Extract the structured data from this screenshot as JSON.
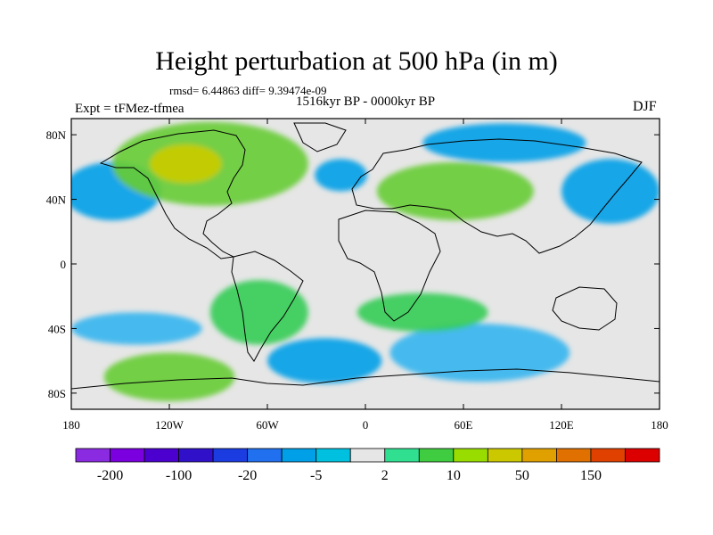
{
  "title": "Height perturbation at 500 hPa (in m)",
  "stats_line": "rmsd= 6.44863 diff= 9.39474e-09",
  "period": "1516kyr BP - 0000kyr BP",
  "experiment": "Expt = tFMez-tfmea",
  "season": "DJF",
  "map": {
    "projection": "cylindrical equidistant",
    "lon_range": [
      -180,
      180
    ],
    "lat_range": [
      -90,
      90
    ],
    "x_ticks": [
      {
        "lon": -180,
        "label": "180"
      },
      {
        "lon": -120,
        "label": "120W"
      },
      {
        "lon": -60,
        "label": "60W"
      },
      {
        "lon": 0,
        "label": "0"
      },
      {
        "lon": 60,
        "label": "60E"
      },
      {
        "lon": 120,
        "label": "120E"
      },
      {
        "lon": 180,
        "label": "180"
      }
    ],
    "y_ticks": [
      {
        "lat": 80,
        "label": "80N"
      },
      {
        "lat": 40,
        "label": "40N"
      },
      {
        "lat": 0,
        "label": "0"
      },
      {
        "lat": -40,
        "label": "40S"
      },
      {
        "lat": -80,
        "label": "80S"
      }
    ],
    "background_color": "#e6e6e6",
    "regions": [
      {
        "name": "north-pacific-low",
        "lon": -155,
        "lat": 45,
        "rlon": 30,
        "rlat": 18,
        "color": "#00a0e8"
      },
      {
        "name": "north-america-high",
        "lon": -95,
        "lat": 62,
        "rlon": 60,
        "rlat": 26,
        "color": "#66cc33"
      },
      {
        "name": "canada-peak",
        "lon": -110,
        "lat": 62,
        "rlon": 22,
        "rlat": 12,
        "color": "#cccc00"
      },
      {
        "name": "north-atlantic-low",
        "lon": -15,
        "lat": 55,
        "rlon": 16,
        "rlat": 10,
        "color": "#00a0e8"
      },
      {
        "name": "eurasia-high",
        "lon": 55,
        "lat": 45,
        "rlon": 48,
        "rlat": 18,
        "color": "#66cc33"
      },
      {
        "name": "siberia-low",
        "lon": 85,
        "lat": 75,
        "rlon": 50,
        "rlat": 12,
        "color": "#00a0e8"
      },
      {
        "name": "west-pacific-low",
        "lon": 150,
        "lat": 45,
        "rlon": 30,
        "rlat": 20,
        "color": "#00a0e8"
      },
      {
        "name": "south-america-high",
        "lon": -65,
        "lat": -30,
        "rlon": 30,
        "rlat": 20,
        "color": "#33cc55"
      },
      {
        "name": "south-pacific-low",
        "lon": -140,
        "lat": -40,
        "rlon": 40,
        "rlat": 10,
        "color": "#33b5f0"
      },
      {
        "name": "south-atlantic-low",
        "lon": -25,
        "lat": -60,
        "rlon": 35,
        "rlat": 14,
        "color": "#00a0e8"
      },
      {
        "name": "indian-ocean-low",
        "lon": 70,
        "lat": -55,
        "rlon": 55,
        "rlat": 18,
        "color": "#33b5f0"
      },
      {
        "name": "southeast-pacific-high",
        "lon": -120,
        "lat": -70,
        "rlon": 40,
        "rlat": 15,
        "color": "#66cc33"
      },
      {
        "name": "south-indian-high",
        "lon": 35,
        "lat": -30,
        "rlon": 40,
        "rlat": 12,
        "color": "#33cc55"
      }
    ]
  },
  "colorbar": {
    "colors": [
      "#8a2be2",
      "#7a00e0",
      "#4b00d0",
      "#3010c8",
      "#1a3ce0",
      "#2070f0",
      "#00a0e8",
      "#00c0e0",
      "#e6e6e6",
      "#30e090",
      "#40cc40",
      "#99dd00",
      "#ccc800",
      "#e0a000",
      "#e07000",
      "#e04000",
      "#dd0000"
    ],
    "labels": [
      "-200",
      "-100",
      "-20",
      "-5",
      "2",
      "10",
      "50",
      "150"
    ]
  }
}
